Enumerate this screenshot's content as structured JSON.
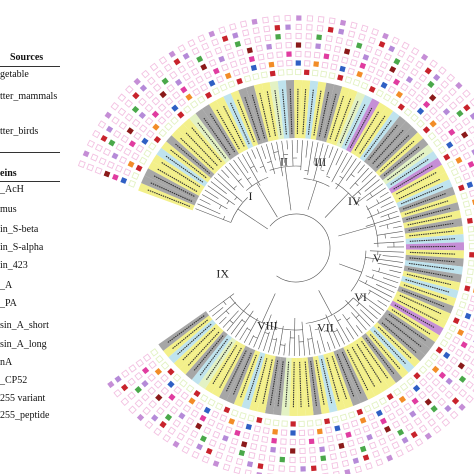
{
  "legend": {
    "sources_title": "Sources",
    "sources_items": [
      "getable",
      "tter_mammals",
      "tter_birds"
    ],
    "proteins_title": "eins",
    "protein_items": [
      "_AcH",
      "mus",
      "in_S-beta",
      "in_S-alpha",
      "in_423",
      "_A",
      "_PA",
      "sin_A_short",
      "sin_A_long",
      "nA",
      "_CP52",
      "255 variant",
      "255_peptide"
    ]
  },
  "clades": [
    "I",
    "II",
    "III",
    "IV",
    "V",
    "VI",
    "VII",
    "VIII",
    "IX"
  ],
  "colors": {
    "yellow": "#f3f08a",
    "gray": "#a6a6a6",
    "light_blue": "#bfe3ee",
    "purple": "#c58ed6",
    "pale_green": "#e3f2c4",
    "pink": "#f3c2e2",
    "red": "#c8232c",
    "blue": "#2f5fc4",
    "orange": "#f28c28",
    "magenta": "#e03ca0",
    "lavender": "#b58ad8",
    "green": "#4aa84a",
    "dark_red": "#8b1a1a"
  }
}
